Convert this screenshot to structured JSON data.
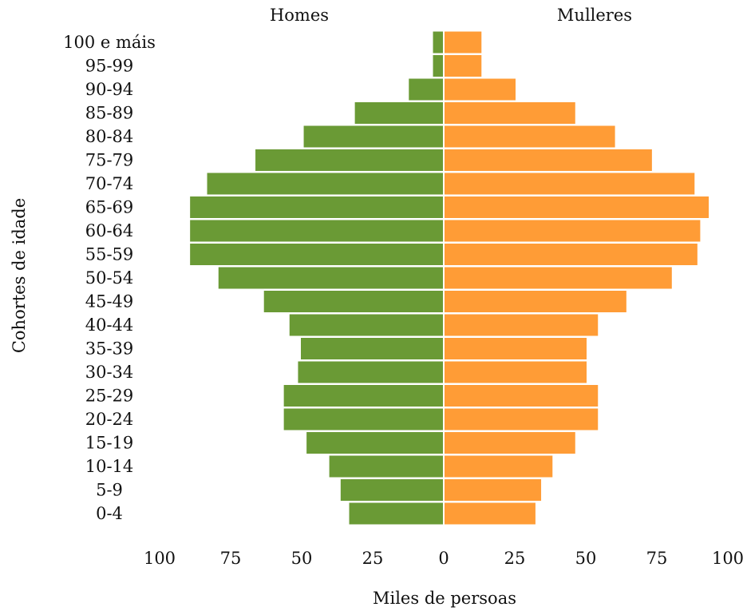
{
  "chart_data": {
    "type": "bar",
    "orientation": "horizontal",
    "left_header": "Homes",
    "right_header": "Mulleres",
    "xlabel": "Miles de persoas",
    "ylabel": "Cohortes de idade",
    "xlim": [
      -100,
      100
    ],
    "x_ticks": [
      {
        "value": -100,
        "label": "100"
      },
      {
        "value": -75,
        "label": "75"
      },
      {
        "value": -50,
        "label": "50"
      },
      {
        "value": -25,
        "label": "25"
      },
      {
        "value": 0,
        "label": "0"
      },
      {
        "value": 25,
        "label": "25"
      },
      {
        "value": 50,
        "label": "50"
      },
      {
        "value": 75,
        "label": "75"
      },
      {
        "value": 100,
        "label": "100"
      }
    ],
    "categories": [
      "0-4",
      "5-9",
      "10-14",
      "15-19",
      "20-24",
      "25-29",
      "30-34",
      "35-39",
      "40-44",
      "45-49",
      "50-54",
      "55-59",
      "60-64",
      "65-69",
      "70-74",
      "75-79",
      "80-84",
      "85-89",
      "90-94",
      "95-99",
      "100  e máis"
    ],
    "series": [
      {
        "name": "Homes",
        "color": "#6a9a35",
        "values": [
          33,
          36,
          40,
          48,
          56,
          56,
          51,
          50,
          54,
          63,
          79,
          89,
          89,
          89,
          83,
          66,
          49,
          31,
          12,
          3.5,
          3.5
        ]
      },
      {
        "name": "Mulleres",
        "color": "#ff9c36",
        "values": [
          32,
          34,
          38,
          46,
          54,
          54,
          50,
          50,
          54,
          64,
          80,
          89,
          90,
          93,
          88,
          73,
          60,
          46,
          25,
          13,
          13
        ]
      }
    ],
    "grid": false,
    "legend": "none"
  }
}
